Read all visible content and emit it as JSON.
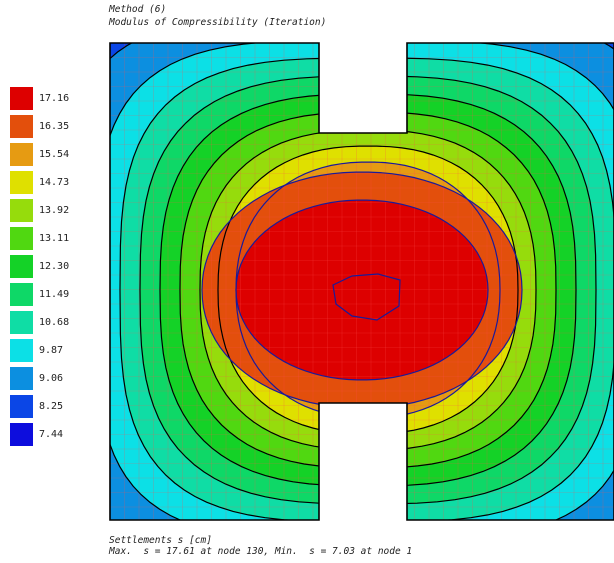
{
  "header": {
    "method": "Method (6)",
    "subtitle": "Modulus of Compressibility (Iteration)"
  },
  "legend": {
    "items": [
      {
        "value": "17.16",
        "color": "#dd0000"
      },
      {
        "value": "16.35",
        "color": "#e34f0c"
      },
      {
        "value": "15.54",
        "color": "#e69b12"
      },
      {
        "value": "14.73",
        "color": "#dfe000"
      },
      {
        "value": "13.92",
        "color": "#96dc0c"
      },
      {
        "value": "13.11",
        "color": "#50d811"
      },
      {
        "value": "12.30",
        "color": "#14d227"
      },
      {
        "value": "11.49",
        "color": "#0ed867"
      },
      {
        "value": "10.68",
        "color": "#0fdda5"
      },
      {
        "value": "9.87",
        "color": "#0ce0e6"
      },
      {
        "value": "9.06",
        "color": "#0c8fe0"
      },
      {
        "value": "8.25",
        "color": "#0b46e6"
      },
      {
        "value": "7.44",
        "color": "#0d0ddd"
      }
    ]
  },
  "footer": {
    "line1": "Settlements s [cm]",
    "line2": "Max.  s = 17.61 at node 130, Min.  s = 7.03 at node 1"
  }
}
